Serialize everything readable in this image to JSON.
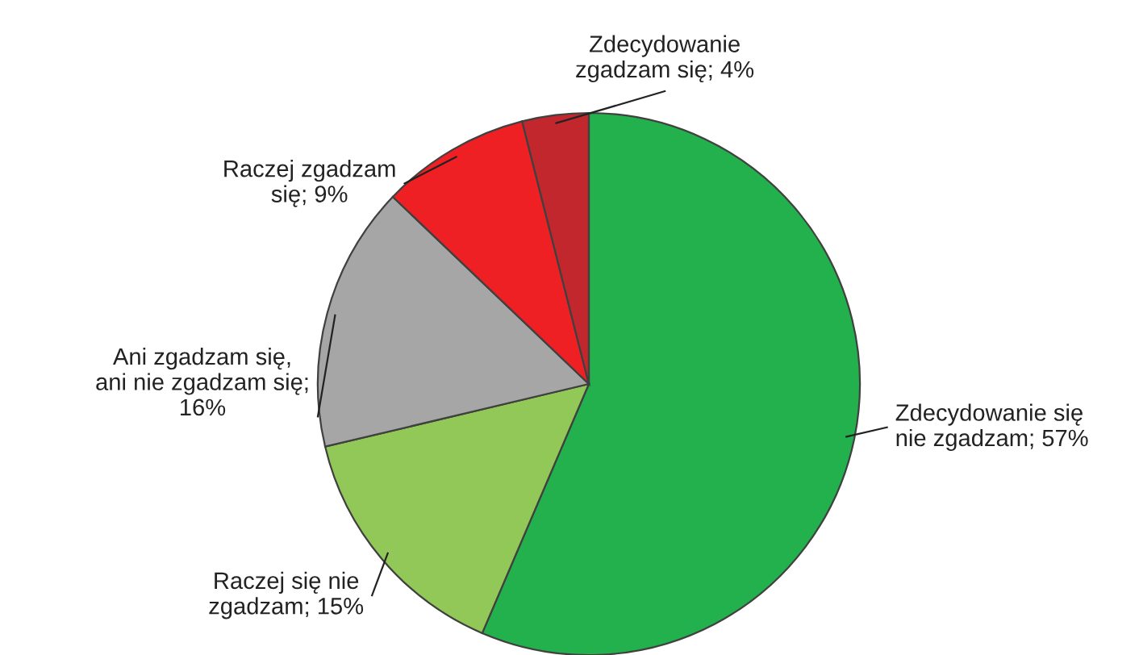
{
  "chart_data": {
    "type": "pie",
    "categories": [
      "Zdecydowanie się nie zgadzam; 57%",
      "Raczej się nie zgadzam; 15%",
      "Ani zgadzam się, ani nie zgadzam się; 16%",
      "Raczej zgadzam się; 9%",
      "Zdecydowanie zgadzam się; 4%"
    ],
    "values": [
      57,
      15,
      16,
      9,
      4
    ],
    "colors": [
      "#22b14c",
      "#92c857",
      "#a6a6a6",
      "#ee2024",
      "#c1272d"
    ]
  }
}
